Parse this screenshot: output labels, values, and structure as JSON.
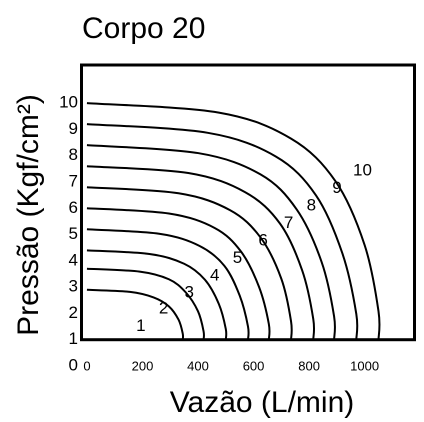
{
  "chart_data": {
    "type": "line",
    "title": "Corpo 20",
    "xlabel": "Vazão (L/min)",
    "ylabel": "Pressão (Kgf/cm²)",
    "xlim": [
      -25,
      1185
    ],
    "xticks": [
      0,
      200,
      400,
      600,
      800,
      1000
    ],
    "ylim": [
      0,
      11.45
    ],
    "yticks": [
      0,
      1,
      2,
      3,
      4,
      5,
      6,
      7,
      8,
      9,
      10
    ],
    "grid": false,
    "series": [
      {
        "name": "1",
        "color": "#000000",
        "x": [
          0,
          155,
          240,
          295,
          330,
          345,
          345
        ],
        "values": [
          2.9,
          2.82,
          2.61,
          2.27,
          1.76,
          1.23,
          1
        ]
      },
      {
        "name": "2",
        "color": "#000000",
        "x": [
          0,
          190,
          295,
          355,
          400,
          420,
          420
        ],
        "values": [
          3.7,
          3.59,
          3.3,
          2.81,
          2.08,
          1.32,
          1
        ]
      },
      {
        "name": "3",
        "color": "#000000",
        "x": [
          0,
          225,
          350,
          425,
          475,
          500,
          500
        ],
        "values": [
          4.4,
          4.26,
          3.89,
          3.28,
          2.36,
          1.41,
          1
        ]
      },
      {
        "name": "4",
        "color": "#000000",
        "x": [
          0,
          260,
          405,
          495,
          550,
          580,
          580
        ],
        "values": [
          5.2,
          5.03,
          4.57,
          3.81,
          2.68,
          1.5,
          1
        ]
      },
      {
        "name": "5",
        "color": "#000000",
        "x": [
          0,
          295,
          460,
          555,
          620,
          655,
          655
        ],
        "values": [
          6,
          5.8,
          5.25,
          4.35,
          3,
          1.6,
          1
        ]
      },
      {
        "name": "6",
        "color": "#000000",
        "x": [
          0,
          330,
          515,
          625,
          700,
          735,
          735
        ],
        "values": [
          6.8,
          6.57,
          5.93,
          4.89,
          3.32,
          1.7,
          1
        ]
      },
      {
        "name": "7",
        "color": "#000000",
        "x": [
          0,
          365,
          570,
          695,
          775,
          815,
          815
        ],
        "values": [
          7.6,
          7.34,
          6.61,
          5.42,
          3.64,
          1.79,
          1
        ]
      },
      {
        "name": "8",
        "color": "#000000",
        "x": [
          0,
          400,
          625,
          755,
          845,
          890,
          890
        ],
        "values": [
          8.4,
          8.1,
          7.29,
          5.96,
          3.96,
          1.89,
          1
        ]
      },
      {
        "name": "9",
        "color": "#000000",
        "x": [
          0,
          435,
          680,
          825,
          920,
          970,
          970
        ],
        "values": [
          9.2,
          8.87,
          7.97,
          6.49,
          4.28,
          1.98,
          1
        ]
      },
      {
        "name": "10",
        "color": "#000000",
        "x": [
          0,
          475,
          735,
          895,
          1000,
          1050,
          1050
        ],
        "values": [
          10,
          9.64,
          8.65,
          7.03,
          4.6,
          2.08,
          1
        ]
      }
    ]
  }
}
